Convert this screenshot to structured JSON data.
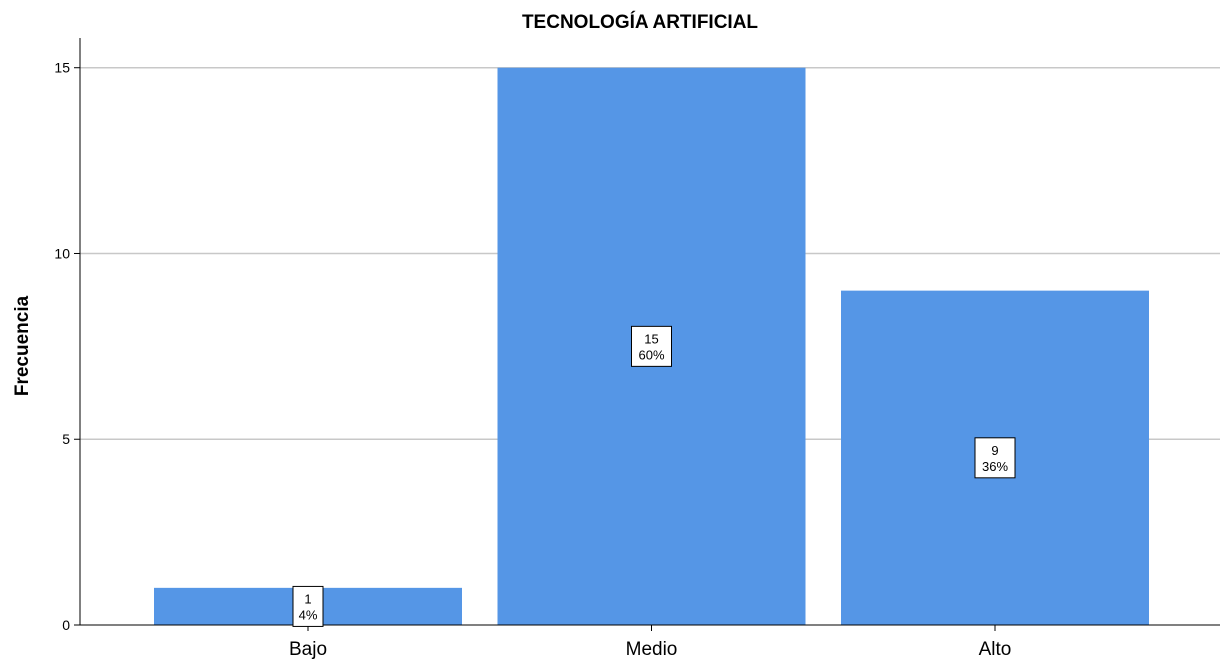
{
  "chart_data": {
    "type": "bar",
    "title": "TECNOLOGÍA ARTIFICIAL",
    "xlabel": "",
    "ylabel": "Frecuencia",
    "categories": [
      "Bajo",
      "Medio",
      "Alto"
    ],
    "values": [
      1,
      15,
      9
    ],
    "data_labels": [
      {
        "count": "1",
        "percent": "4%"
      },
      {
        "count": "15",
        "percent": "60%"
      },
      {
        "count": "9",
        "percent": "36%"
      }
    ],
    "ylim": [
      0,
      15.8
    ],
    "yticks": [
      0,
      5,
      10,
      15
    ],
    "grid": true,
    "bar_color": "#5596e6",
    "grid_color": "#c8c8c8"
  }
}
